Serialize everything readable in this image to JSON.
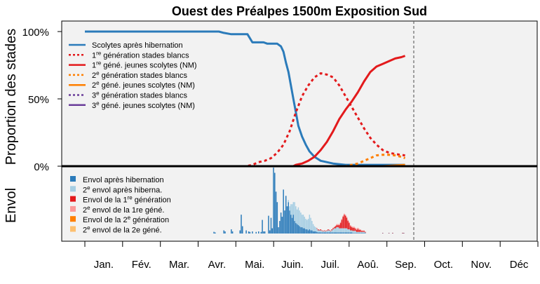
{
  "chart_data": {
    "type": "line",
    "title": "Ouest des Préalpes 1500m Exposition Sud",
    "ylabel_top": "Proportion des stades",
    "ylabel_bottom": "Envol",
    "yticks": [
      "100%",
      "50%",
      "0%"
    ],
    "ylim_top": [
      0,
      100
    ],
    "months": [
      "Jan.",
      "Fév.",
      "Mar.",
      "Avr.",
      "Mai.",
      "Juin.",
      "Juil.",
      "Aoû.",
      "Sep.",
      "Oct.",
      "Nov.",
      "Déc"
    ],
    "x_unit": "day of year",
    "xlim": [
      0,
      365
    ],
    "today_day": 258,
    "background": "#f2f2f2",
    "series": [
      {
        "name": "Scolytes après hibernation",
        "color": "#2b7bba",
        "dash": false,
        "x": [
          0,
          108,
          112,
          118,
          131,
          135,
          137,
          144,
          147,
          150,
          155,
          158,
          160,
          162,
          164,
          166,
          168,
          170,
          172,
          175,
          178,
          181,
          185,
          190,
          200,
          210,
          258
        ],
        "y": [
          100,
          100,
          99,
          98,
          98,
          92,
          92,
          92,
          91,
          91,
          91,
          89,
          85,
          77,
          70,
          60,
          50,
          40,
          30,
          22,
          16,
          11,
          7,
          4,
          2,
          1,
          1
        ]
      },
      {
        "name": "1re génération stades blancs",
        "color": "#e31a1c",
        "dash": true,
        "x": [
          100,
          120,
          130,
          135,
          140,
          145,
          150,
          155,
          160,
          165,
          170,
          175,
          180,
          185,
          190,
          195,
          200,
          205,
          210,
          215,
          220,
          225,
          230,
          235,
          240,
          245,
          250,
          258
        ],
        "y": [
          0,
          0,
          0,
          1,
          3,
          4,
          6,
          10,
          16,
          26,
          40,
          52,
          60,
          66,
          69,
          68,
          66,
          60,
          52,
          44,
          36,
          28,
          21,
          16,
          12,
          10,
          9,
          8
        ]
      },
      {
        "name": "1re géné. jeunes scolytes (NM)",
        "color": "#e31a1c",
        "dash": false,
        "x": [
          0,
          168,
          170,
          175,
          180,
          185,
          190,
          195,
          200,
          205,
          210,
          215,
          220,
          225,
          230,
          235,
          240,
          245,
          250,
          255,
          258
        ],
        "y": [
          0,
          0,
          1,
          2,
          4,
          7,
          12,
          18,
          26,
          35,
          42,
          48,
          55,
          63,
          70,
          74,
          76,
          78,
          80,
          81,
          82
        ]
      },
      {
        "name": "2e génération stades blancs",
        "color": "#ff7f00",
        "dash": true,
        "x": [
          200,
          210,
          215,
          220,
          225,
          230,
          235,
          240,
          245,
          250,
          255,
          258
        ],
        "y": [
          0,
          0,
          1,
          2,
          4,
          6,
          8,
          8.5,
          8.5,
          8,
          7,
          6
        ]
      },
      {
        "name": "2e géné. jeunes scolytes (NM)",
        "color": "#ff7f00",
        "dash": false,
        "x": [
          230,
          240,
          250,
          258
        ],
        "y": [
          0,
          0,
          0.5,
          1
        ]
      },
      {
        "name": "3e génération stades blancs",
        "color": "#6a3d9a",
        "dash": true,
        "x": [
          0,
          258
        ],
        "y": [
          0,
          0
        ]
      },
      {
        "name": "3e géné. jeunes scolytes (NM)",
        "color": "#6a3d9a",
        "dash": false,
        "x": [
          0,
          258
        ],
        "y": [
          0,
          0
        ]
      }
    ],
    "envol_legend": [
      {
        "name": "Envol après hibernation",
        "color": "#2b7bba"
      },
      {
        "name": "2e envol après hiberna.",
        "color": "#a6cee3"
      },
      {
        "name": "Envol de la 1re génération",
        "color": "#e31a1c"
      },
      {
        "name": "2e envol de la 1re géné.",
        "color": "#fb9a99"
      },
      {
        "name": "Envol de la 2e génération",
        "color": "#ff7f00"
      },
      {
        "name": "2e envol de la 2e géné.",
        "color": "#fdbf6f"
      }
    ],
    "envol_bars": [
      {
        "day": 104,
        "values": [
          1.6,
          0,
          0,
          0
        ]
      },
      {
        "day": 105,
        "values": [
          1.0,
          0,
          0,
          0
        ]
      },
      {
        "day": 112,
        "values": [
          3,
          0,
          0,
          0
        ]
      },
      {
        "day": 113,
        "values": [
          2,
          0,
          0,
          0
        ]
      },
      {
        "day": 118,
        "values": [
          4,
          0,
          0,
          0
        ]
      },
      {
        "day": 119,
        "values": [
          2,
          0,
          0,
          0
        ]
      },
      {
        "day": 125,
        "values": [
          3,
          0,
          0,
          0
        ]
      },
      {
        "day": 126,
        "values": [
          18,
          0,
          0,
          0
        ]
      },
      {
        "day": 127,
        "values": [
          7,
          0,
          0,
          0
        ]
      },
      {
        "day": 130,
        "values": [
          3,
          0,
          0,
          0
        ]
      },
      {
        "day": 132,
        "values": [
          2,
          0,
          0,
          0
        ]
      },
      {
        "day": 133,
        "values": [
          1.5,
          0,
          0,
          0
        ]
      },
      {
        "day": 135,
        "values": [
          2,
          0,
          0,
          0
        ]
      },
      {
        "day": 138,
        "values": [
          1.5,
          0,
          0,
          0
        ]
      },
      {
        "day": 140,
        "values": [
          2,
          0,
          0,
          0
        ]
      },
      {
        "day": 142,
        "values": [
          1.5,
          0,
          0,
          0
        ]
      },
      {
        "day": 143,
        "values": [
          13,
          0,
          0,
          0
        ]
      },
      {
        "day": 144,
        "values": [
          2,
          0,
          0,
          0
        ]
      },
      {
        "day": 145,
        "values": [
          2,
          0,
          0,
          0
        ]
      },
      {
        "day": 148,
        "values": [
          17,
          0,
          0,
          0
        ]
      },
      {
        "day": 149,
        "values": [
          3,
          0,
          0,
          0
        ]
      },
      {
        "day": 150,
        "values": [
          15,
          0,
          0,
          0
        ]
      },
      {
        "day": 151,
        "values": [
          5,
          0,
          0,
          0
        ]
      },
      {
        "day": 152,
        "values": [
          63,
          0,
          0,
          0
        ]
      },
      {
        "day": 153,
        "values": [
          58,
          0,
          0,
          0
        ]
      },
      {
        "day": 154,
        "values": [
          40,
          0,
          0,
          0
        ]
      },
      {
        "day": 155,
        "values": [
          30,
          0,
          0,
          0
        ]
      },
      {
        "day": 156,
        "values": [
          6,
          0,
          0,
          0
        ]
      },
      {
        "day": 157,
        "values": [
          12,
          0,
          0,
          0
        ]
      },
      {
        "day": 158,
        "values": [
          20,
          0,
          0,
          0
        ]
      },
      {
        "day": 159,
        "values": [
          16,
          0,
          0,
          0
        ]
      },
      {
        "day": 160,
        "values": [
          42,
          0,
          0,
          0
        ]
      },
      {
        "day": 161,
        "values": [
          22,
          0,
          0,
          0
        ]
      },
      {
        "day": 162,
        "values": [
          36,
          0,
          0,
          0
        ]
      },
      {
        "day": 163,
        "values": [
          26,
          0,
          0,
          0
        ]
      },
      {
        "day": 164,
        "values": [
          30,
          2,
          0,
          0
        ]
      },
      {
        "day": 165,
        "values": [
          22,
          4,
          0,
          0
        ]
      },
      {
        "day": 166,
        "values": [
          18,
          10,
          0,
          0
        ]
      },
      {
        "day": 167,
        "values": [
          15,
          13,
          0,
          0
        ]
      },
      {
        "day": 168,
        "values": [
          18,
          12,
          0,
          0
        ]
      },
      {
        "day": 169,
        "values": [
          12,
          18,
          0,
          0
        ]
      },
      {
        "day": 170,
        "values": [
          10,
          16,
          0,
          0
        ]
      },
      {
        "day": 171,
        "values": [
          9,
          14,
          0,
          0
        ]
      },
      {
        "day": 172,
        "values": [
          8,
          17,
          0,
          0
        ]
      },
      {
        "day": 173,
        "values": [
          7,
          15,
          0,
          0
        ]
      },
      {
        "day": 174,
        "values": [
          6,
          14,
          0,
          0
        ]
      },
      {
        "day": 175,
        "values": [
          6,
          12,
          0,
          0
        ]
      },
      {
        "day": 176,
        "values": [
          5,
          13,
          0,
          0
        ]
      },
      {
        "day": 177,
        "values": [
          5,
          11,
          0,
          0
        ]
      },
      {
        "day": 178,
        "values": [
          4,
          10,
          0,
          0
        ]
      },
      {
        "day": 179,
        "values": [
          4,
          9,
          0,
          0
        ]
      },
      {
        "day": 180,
        "values": [
          3,
          11,
          0,
          0
        ]
      },
      {
        "day": 181,
        "values": [
          4,
          14,
          0,
          0
        ]
      },
      {
        "day": 182,
        "values": [
          3,
          12,
          0,
          0
        ]
      },
      {
        "day": 183,
        "values": [
          3,
          9,
          0,
          0
        ]
      },
      {
        "day": 184,
        "values": [
          2,
          7,
          0,
          0
        ]
      },
      {
        "day": 185,
        "values": [
          2,
          5,
          0,
          0
        ]
      },
      {
        "day": 186,
        "values": [
          2,
          4,
          0,
          0
        ]
      },
      {
        "day": 187,
        "values": [
          1.5,
          3,
          0.5,
          0
        ]
      },
      {
        "day": 188,
        "values": [
          1,
          2,
          1,
          0
        ]
      },
      {
        "day": 189,
        "values": [
          1,
          2,
          0.5,
          0
        ]
      },
      {
        "day": 190,
        "values": [
          1,
          2,
          1,
          0
        ]
      },
      {
        "day": 191,
        "values": [
          1,
          1.5,
          0.5,
          0
        ]
      },
      {
        "day": 192,
        "values": [
          1,
          1,
          0.5,
          0
        ]
      },
      {
        "day": 193,
        "values": [
          1,
          1.5,
          0.5,
          0
        ]
      },
      {
        "day": 194,
        "values": [
          1,
          1,
          0.5,
          0
        ]
      },
      {
        "day": 195,
        "values": [
          1,
          1.5,
          0.5,
          0
        ]
      },
      {
        "day": 196,
        "values": [
          1,
          2,
          1,
          0
        ]
      },
      {
        "day": 197,
        "values": [
          1,
          2,
          0.5,
          0
        ]
      },
      {
        "day": 198,
        "values": [
          1,
          1,
          0.5,
          0
        ]
      },
      {
        "day": 199,
        "values": [
          1,
          2,
          1,
          0
        ]
      },
      {
        "day": 200,
        "values": [
          1,
          3,
          1,
          0.5
        ]
      },
      {
        "day": 201,
        "values": [
          1,
          4,
          1,
          0.5
        ]
      },
      {
        "day": 202,
        "values": [
          1,
          4,
          2,
          0.5
        ]
      },
      {
        "day": 203,
        "values": [
          1,
          5,
          2,
          1
        ]
      },
      {
        "day": 204,
        "values": [
          1,
          5,
          2,
          1
        ]
      },
      {
        "day": 205,
        "values": [
          1,
          4,
          3,
          1
        ]
      },
      {
        "day": 206,
        "values": [
          1,
          4,
          5,
          1
        ]
      },
      {
        "day": 207,
        "values": [
          1,
          4,
          8,
          1
        ]
      },
      {
        "day": 208,
        "values": [
          1,
          4,
          11,
          1
        ]
      },
      {
        "day": 209,
        "values": [
          1,
          4,
          13,
          1
        ]
      },
      {
        "day": 210,
        "values": [
          1,
          4,
          12,
          1
        ]
      },
      {
        "day": 211,
        "values": [
          1,
          4,
          10,
          1
        ]
      },
      {
        "day": 212,
        "values": [
          1,
          3,
          8,
          1
        ]
      },
      {
        "day": 213,
        "values": [
          1,
          3,
          6,
          1
        ]
      },
      {
        "day": 214,
        "values": [
          1,
          2,
          4,
          1
        ]
      },
      {
        "day": 215,
        "values": [
          1,
          2,
          3,
          1
        ]
      },
      {
        "day": 216,
        "values": [
          0.5,
          2,
          3,
          1
        ]
      },
      {
        "day": 217,
        "values": [
          0.5,
          2,
          3,
          1
        ]
      },
      {
        "day": 218,
        "values": [
          0.5,
          2,
          2,
          1
        ]
      },
      {
        "day": 219,
        "values": [
          0.5,
          1,
          2,
          1
        ]
      },
      {
        "day": 220,
        "values": [
          0.5,
          1,
          3,
          1
        ]
      },
      {
        "day": 221,
        "values": [
          0.5,
          1,
          2,
          1
        ]
      },
      {
        "day": 222,
        "values": [
          0.5,
          1,
          2,
          0.5
        ]
      },
      {
        "day": 223,
        "values": [
          0.5,
          1,
          1,
          0.5
        ]
      },
      {
        "day": 224,
        "values": [
          0.5,
          1,
          1,
          0.5
        ]
      },
      {
        "day": 225,
        "values": [
          0.5,
          1,
          1,
          0.5
        ]
      },
      {
        "day": 226,
        "values": [
          0.5,
          0.5,
          0.5,
          0.5
        ]
      },
      {
        "day": 240,
        "values": [
          0.3,
          0,
          0.3,
          0
        ]
      },
      {
        "day": 245,
        "values": [
          0.3,
          0,
          0.3,
          0
        ]
      },
      {
        "day": 248,
        "values": [
          0.3,
          0,
          0.4,
          0
        ]
      },
      {
        "day": 256,
        "values": [
          0.3,
          0,
          0.4,
          0
        ]
      },
      {
        "day": 257,
        "values": [
          0.3,
          0,
          0.3,
          0
        ]
      }
    ],
    "envol_ylim": [
      0,
      65
    ]
  }
}
